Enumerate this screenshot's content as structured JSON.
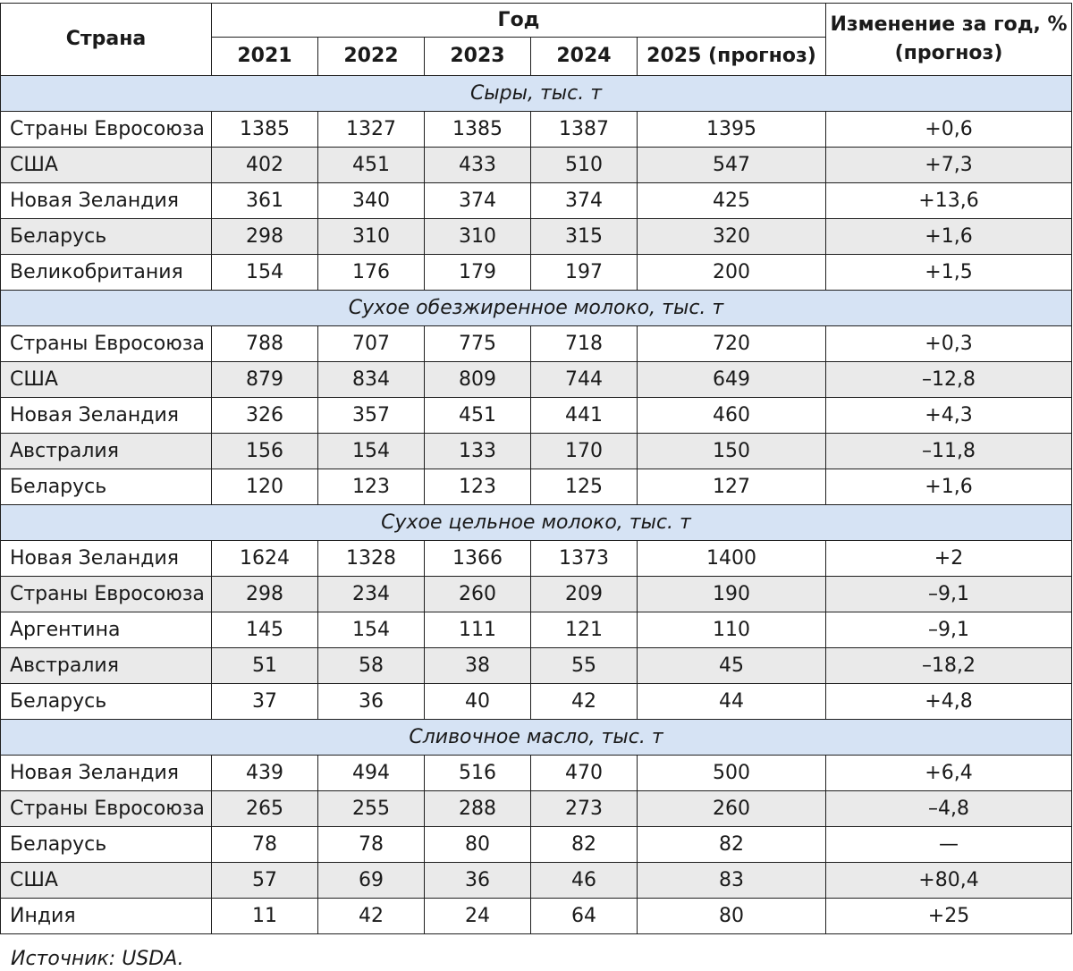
{
  "header": {
    "country": "Страна",
    "year_group": "Год",
    "change": "Изменение за год, % (прогноз)",
    "years": [
      "2021",
      "2022",
      "2023",
      "2024",
      "2025 (прогноз)"
    ]
  },
  "sections": [
    {
      "title": "Сыры, тыс. т",
      "rows": [
        {
          "country": "Страны Евросоюза",
          "values": [
            "1385",
            "1327",
            "1385",
            "1387",
            "1395"
          ],
          "change": "+0,6"
        },
        {
          "country": "США",
          "values": [
            "402",
            "451",
            "433",
            "510",
            "547"
          ],
          "change": "+7,3"
        },
        {
          "country": "Новая Зеландия",
          "values": [
            "361",
            "340",
            "374",
            "374",
            "425"
          ],
          "change": "+13,6"
        },
        {
          "country": "Беларусь",
          "values": [
            "298",
            "310",
            "310",
            "315",
            "320"
          ],
          "change": "+1,6"
        },
        {
          "country": "Великобритания",
          "values": [
            "154",
            "176",
            "179",
            "197",
            "200"
          ],
          "change": "+1,5"
        }
      ]
    },
    {
      "title": "Сухое обезжиренное молоко, тыс. т",
      "rows": [
        {
          "country": "Страны Евросоюза",
          "values": [
            "788",
            "707",
            "775",
            "718",
            "720"
          ],
          "change": "+0,3"
        },
        {
          "country": "США",
          "values": [
            "879",
            "834",
            "809",
            "744",
            "649"
          ],
          "change": "–12,8"
        },
        {
          "country": "Новая Зеландия",
          "values": [
            "326",
            "357",
            "451",
            "441",
            "460"
          ],
          "change": "+4,3"
        },
        {
          "country": "Австралия",
          "values": [
            "156",
            "154",
            "133",
            "170",
            "150"
          ],
          "change": "–11,8"
        },
        {
          "country": "Беларусь",
          "values": [
            "120",
            "123",
            "123",
            "125",
            "127"
          ],
          "change": "+1,6"
        }
      ]
    },
    {
      "title": "Сухое цельное молоко, тыс. т",
      "rows": [
        {
          "country": "Новая Зеландия",
          "values": [
            "1624",
            "1328",
            "1366",
            "1373",
            "1400"
          ],
          "change": "+2"
        },
        {
          "country": "Страны Евросоюза",
          "values": [
            "298",
            "234",
            "260",
            "209",
            "190"
          ],
          "change": "–9,1"
        },
        {
          "country": "Аргентина",
          "values": [
            "145",
            "154",
            "111",
            "121",
            "110"
          ],
          "change": "–9,1"
        },
        {
          "country": "Австралия",
          "values": [
            "51",
            "58",
            "38",
            "55",
            "45"
          ],
          "change": "–18,2"
        },
        {
          "country": "Беларусь",
          "values": [
            "37",
            "36",
            "40",
            "42",
            "44"
          ],
          "change": "+4,8"
        }
      ]
    },
    {
      "title": "Сливочное масло, тыс. т",
      "rows": [
        {
          "country": "Новая Зеландия",
          "values": [
            "439",
            "494",
            "516",
            "470",
            "500"
          ],
          "change": "+6,4"
        },
        {
          "country": "Страны Евросоюза",
          "values": [
            "265",
            "255",
            "288",
            "273",
            "260"
          ],
          "change": "–4,8"
        },
        {
          "country": "Беларусь",
          "values": [
            "78",
            "78",
            "80",
            "82",
            "82"
          ],
          "change": "—"
        },
        {
          "country": "США",
          "values": [
            "57",
            "69",
            "36",
            "46",
            "83"
          ],
          "change": "+80,4"
        },
        {
          "country": "Индия",
          "values": [
            "11",
            "42",
            "24",
            "64",
            "80"
          ],
          "change": "+25"
        }
      ]
    }
  ],
  "source": "Источник: USDA.",
  "colors": {
    "section_band": "#d6e3f4",
    "row_shade": "#eaeaea",
    "border": "#1f1f1f"
  }
}
